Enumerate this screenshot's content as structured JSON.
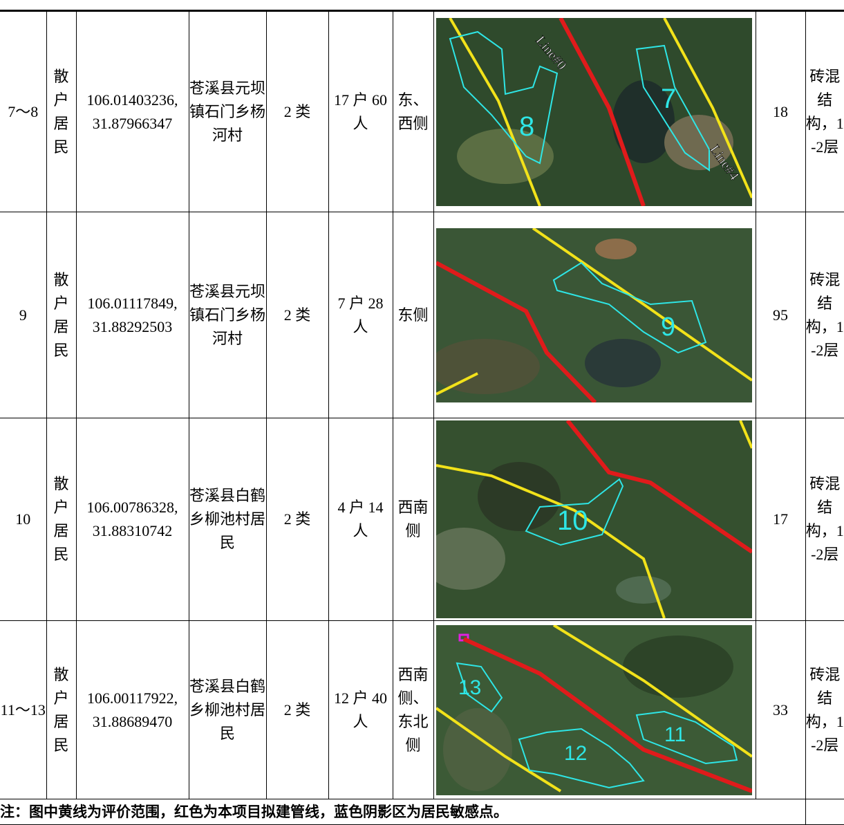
{
  "table": {
    "rows": [
      {
        "id": "7～8",
        "type": "散户居民",
        "lng": "106.01403236,",
        "lat": "31.87966347",
        "location": "苍溪县元坝镇石门乡杨河村",
        "class": "2 类",
        "population": "17 户 60 人",
        "direction": "东、西侧",
        "map_labels": [
          "Line#0",
          "8",
          "7",
          "Line#4"
        ],
        "distance": "18",
        "structure": "砖混结构，1-2层"
      },
      {
        "id": "9",
        "type": "散户居民",
        "lng": "106.01117849,",
        "lat": "31.88292503",
        "location": "苍溪县元坝镇石门乡杨河村",
        "class": "2 类",
        "population": "7 户 28 人",
        "direction": "东侧",
        "map_labels": [
          "9"
        ],
        "distance": "95",
        "structure": "砖混结构，1-2层"
      },
      {
        "id": "10",
        "type": "散户居民",
        "lng": "106.00786328,",
        "lat": "31.88310742",
        "location": "苍溪县白鹤乡柳池村居民",
        "class": "2 类",
        "population": "4 户 14 人",
        "direction": "西南侧",
        "map_labels": [
          "10"
        ],
        "distance": "17",
        "structure": "砖混结构，1-2层"
      },
      {
        "id": "11～13",
        "type": "散户居民",
        "lng": "106.00117922,",
        "lat": "31.88689470",
        "location": "苍溪县白鹤乡柳池村居民",
        "class": "2 类",
        "population": "12 户 40 人",
        "direction": "西南侧、东北侧",
        "map_labels": [
          "13",
          "12",
          "11"
        ],
        "distance": "33",
        "structure": "砖混结构，1-2层"
      }
    ],
    "note": "注：图中黄线为评价范围，红色为本项目拟建管线，蓝色阴影区为居民敏感点。"
  }
}
